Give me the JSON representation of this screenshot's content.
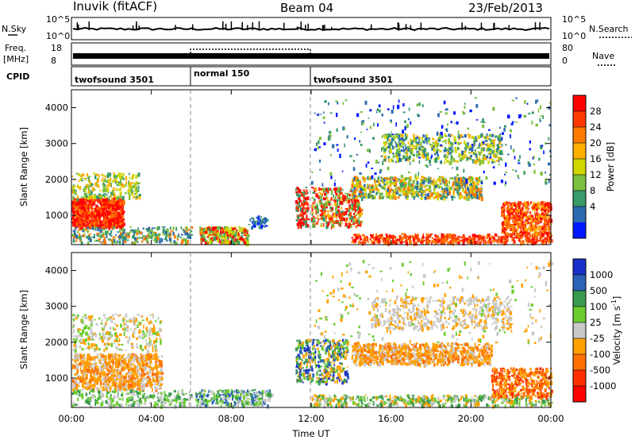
{
  "header": {
    "station": "Inuvik (fitACF)",
    "beam": "Beam 04",
    "date": "23/Feb/2013"
  },
  "status_panels": {
    "nsky_label": "N.Sky",
    "nsearch_label": "N.Search",
    "freq_label_line1": "Freq.",
    "freq_label_line2": "[MHz]",
    "nave_label": "Nave",
    "cpid_label": "CPID",
    "noise_left_ticks": [
      "10^5",
      "10^0"
    ],
    "noise_right_ticks": [
      "10^5",
      "10^0"
    ],
    "freq_left_ticks": [
      "18",
      "8"
    ],
    "freq_right_ticks": [
      "80",
      "0"
    ],
    "cpid_segments": [
      {
        "label": "twofsound 3501",
        "start_h": 0,
        "end_h": 6
      },
      {
        "label": "normal 150",
        "start_h": 6,
        "end_h": 12
      },
      {
        "label": "twofsound 3501",
        "start_h": 12,
        "end_h": 24
      }
    ]
  },
  "chart_data": [
    {
      "type": "heatmap",
      "name": "power-panel",
      "ylabel": "Slant Range [km]",
      "xlim_hours": [
        0,
        24
      ],
      "ylim": [
        180,
        4500
      ],
      "y_ticks": [
        1000,
        2000,
        3000,
        4000
      ],
      "x_ticks": [
        "00:00",
        "04:00",
        "08:00",
        "12:00",
        "16:00",
        "20:00",
        "00:00"
      ],
      "colorbar": {
        "label": "Power [dB]",
        "ticks": [
          "28",
          "24",
          "20",
          "16",
          "12",
          "8",
          "4"
        ],
        "colors": [
          "#ff0000",
          "#ff3a00",
          "#ff7a00",
          "#ffb000",
          "#cfd600",
          "#7cc040",
          "#3a9a6a",
          "#2a6ab0",
          "#0018ff"
        ]
      }
    },
    {
      "type": "heatmap",
      "name": "velocity-panel",
      "ylabel": "Slant Range [km]",
      "xlabel": "Time UT",
      "xlim_hours": [
        0,
        24
      ],
      "ylim": [
        180,
        4500
      ],
      "y_ticks": [
        1000,
        2000,
        3000,
        4000
      ],
      "x_ticks": [
        "00:00",
        "04:00",
        "08:00",
        "12:00",
        "16:00",
        "20:00",
        "00:00"
      ],
      "colorbar": {
        "label_main": "Velocity [m s",
        "label_sup": "-1",
        "label_end": "]",
        "ticks": [
          "1000",
          "500",
          "100",
          "25",
          "-25",
          "-100",
          "-500",
          "-1000"
        ],
        "colors": [
          "#1a2ec8",
          "#2a62b8",
          "#3a9a50",
          "#6ccc30",
          "#c8c8c8",
          "#ffa000",
          "#ff7000",
          "#ff3000",
          "#ff0000"
        ]
      }
    }
  ]
}
